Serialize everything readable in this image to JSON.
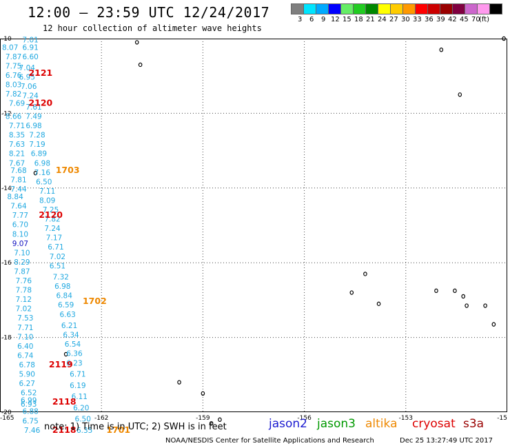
{
  "header": {
    "title": "12:00 – 23:59 UTC 12/24/2017",
    "subtitle": "12 hour collection of altimeter wave heights"
  },
  "legend": {
    "colors": [
      "#7f7f7f",
      "#00e5ff",
      "#00aaff",
      "#0000ff",
      "#66ee66",
      "#22cc22",
      "#008800",
      "#ffff00",
      "#ffcc00",
      "#ff9900",
      "#ff0000",
      "#cc0000",
      "#990000",
      "#800040",
      "#cc66cc",
      "#ff99ee",
      "#000000"
    ],
    "labels": [
      "3",
      "6",
      "9",
      "12",
      "15",
      "18",
      "21",
      "24",
      "27",
      "30",
      "33",
      "36",
      "39",
      "42",
      "45",
      "70",
      "(ft)"
    ]
  },
  "map": {
    "lon_range": [
      -165,
      -150
    ],
    "lat_range": [
      -20,
      -10
    ],
    "lat_ticks": [
      "-10",
      "-12",
      "-14",
      "-16",
      "-18",
      "-20"
    ],
    "lon_ticks": [
      "-165",
      "-162",
      "-159",
      "-156",
      "-153",
      "-15"
    ],
    "swh_color": "#1fa8e0",
    "swh_highlight_color": "#1010c0",
    "swh_values": [
      {
        "lon": -164.1,
        "lat": -10.1,
        "v": "7.01"
      },
      {
        "lon": -164.7,
        "lat": -10.3,
        "v": "8.07"
      },
      {
        "lon": -164.1,
        "lat": -10.3,
        "v": "6.91"
      },
      {
        "lon": -164.6,
        "lat": -10.55,
        "v": "7.87"
      },
      {
        "lon": -164.1,
        "lat": -10.55,
        "v": "6.60"
      },
      {
        "lon": -164.6,
        "lat": -10.8,
        "v": "7.75"
      },
      {
        "lon": -164.2,
        "lat": -10.85,
        "v": "7.04"
      },
      {
        "lon": -164.6,
        "lat": -11.05,
        "v": "6.76"
      },
      {
        "lon": -164.2,
        "lat": -11.1,
        "v": "6.95"
      },
      {
        "lon": -164.6,
        "lat": -11.3,
        "v": "8.03"
      },
      {
        "lon": -164.15,
        "lat": -11.35,
        "v": "7.06"
      },
      {
        "lon": -164.6,
        "lat": -11.55,
        "v": "7.82"
      },
      {
        "lon": -164.1,
        "lat": -11.6,
        "v": "7.24"
      },
      {
        "lon": -164.5,
        "lat": -11.8,
        "v": "7.69"
      },
      {
        "lon": -164.0,
        "lat": -11.9,
        "v": "7.61"
      },
      {
        "lon": -164.6,
        "lat": -12.15,
        "v": "8.66"
      },
      {
        "lon": -164.0,
        "lat": -12.15,
        "v": "7.49"
      },
      {
        "lon": -164.5,
        "lat": -12.4,
        "v": "7.71"
      },
      {
        "lon": -164.0,
        "lat": -12.4,
        "v": "6.98"
      },
      {
        "lon": -164.5,
        "lat": -12.65,
        "v": "8.35"
      },
      {
        "lon": -163.9,
        "lat": -12.65,
        "v": "7.28"
      },
      {
        "lon": -164.5,
        "lat": -12.9,
        "v": "7.63"
      },
      {
        "lon": -163.9,
        "lat": -12.9,
        "v": "7.19"
      },
      {
        "lon": -164.5,
        "lat": -13.15,
        "v": "8.21"
      },
      {
        "lon": -163.85,
        "lat": -13.15,
        "v": "6.89"
      },
      {
        "lon": -164.5,
        "lat": -13.4,
        "v": "7.67"
      },
      {
        "lon": -163.75,
        "lat": -13.4,
        "v": "6.98"
      },
      {
        "lon": -164.45,
        "lat": -13.6,
        "v": "7.68"
      },
      {
        "lon": -163.75,
        "lat": -13.65,
        "v": "7.16"
      },
      {
        "lon": -164.45,
        "lat": -13.85,
        "v": "7.81"
      },
      {
        "lon": -163.7,
        "lat": -13.9,
        "v": "6.50"
      },
      {
        "lon": -164.45,
        "lat": -14.1,
        "v": "7.44"
      },
      {
        "lon": -164.55,
        "lat": -14.3,
        "v": "8.84"
      },
      {
        "lon": -163.6,
        "lat": -14.15,
        "v": "7.11"
      },
      {
        "lon": -164.45,
        "lat": -14.55,
        "v": "7.64"
      },
      {
        "lon": -163.6,
        "lat": -14.4,
        "v": "8.09"
      },
      {
        "lon": -164.4,
        "lat": -14.8,
        "v": "7.77"
      },
      {
        "lon": -163.5,
        "lat": -14.65,
        "v": "7.25"
      },
      {
        "lon": -164.4,
        "lat": -15.05,
        "v": "6.70"
      },
      {
        "lon": -163.45,
        "lat": -14.9,
        "v": "7.82"
      },
      {
        "lon": -164.4,
        "lat": -15.3,
        "v": "8.10"
      },
      {
        "lon": -163.45,
        "lat": -15.15,
        "v": "7.24"
      },
      {
        "lon": -164.4,
        "lat": -15.55,
        "v": "9.07",
        "highlight": true
      },
      {
        "lon": -163.4,
        "lat": -15.4,
        "v": "7.17"
      },
      {
        "lon": -164.35,
        "lat": -15.8,
        "v": "7.10"
      },
      {
        "lon": -163.35,
        "lat": -15.65,
        "v": "6.71"
      },
      {
        "lon": -164.35,
        "lat": -16.05,
        "v": "8.29"
      },
      {
        "lon": -163.3,
        "lat": -15.9,
        "v": "7.02"
      },
      {
        "lon": -164.35,
        "lat": -16.3,
        "v": "7.87"
      },
      {
        "lon": -163.3,
        "lat": -16.15,
        "v": "6.51"
      },
      {
        "lon": -164.3,
        "lat": -16.55,
        "v": "7.76"
      },
      {
        "lon": -163.2,
        "lat": -16.45,
        "v": "7.32"
      },
      {
        "lon": -164.3,
        "lat": -16.8,
        "v": "7.78"
      },
      {
        "lon": -163.15,
        "lat": -16.7,
        "v": "6.98"
      },
      {
        "lon": -164.3,
        "lat": -17.05,
        "v": "7.12"
      },
      {
        "lon": -163.1,
        "lat": -16.95,
        "v": "6.84"
      },
      {
        "lon": -164.3,
        "lat": -17.3,
        "v": "7.02"
      },
      {
        "lon": -163.05,
        "lat": -17.2,
        "v": "6.59"
      },
      {
        "lon": -164.25,
        "lat": -17.55,
        "v": "7.53"
      },
      {
        "lon": -163.0,
        "lat": -17.45,
        "v": "6.63"
      },
      {
        "lon": -164.25,
        "lat": -17.8,
        "v": "7.71"
      },
      {
        "lon": -162.95,
        "lat": -17.75,
        "v": "6.21"
      },
      {
        "lon": -164.25,
        "lat": -18.05,
        "v": "7.10"
      },
      {
        "lon": -162.9,
        "lat": -18.0,
        "v": "6.34"
      },
      {
        "lon": -164.25,
        "lat": -18.3,
        "v": "6.40"
      },
      {
        "lon": -162.85,
        "lat": -18.25,
        "v": "6.54"
      },
      {
        "lon": -164.25,
        "lat": -18.55,
        "v": "6.74"
      },
      {
        "lon": -162.8,
        "lat": -18.5,
        "v": "6.36"
      },
      {
        "lon": -164.2,
        "lat": -18.8,
        "v": "6.78"
      },
      {
        "lon": -162.8,
        "lat": -18.75,
        "v": "6.23"
      },
      {
        "lon": -164.2,
        "lat": -19.05,
        "v": "5.90"
      },
      {
        "lon": -162.7,
        "lat": -19.05,
        "v": "6.71"
      },
      {
        "lon": -164.2,
        "lat": -19.3,
        "v": "6.27"
      },
      {
        "lon": -162.7,
        "lat": -19.35,
        "v": "6.19"
      },
      {
        "lon": -164.15,
        "lat": -19.55,
        "v": "6.52"
      },
      {
        "lon": -164.15,
        "lat": -19.75,
        "v": "6.99"
      },
      {
        "lon": -162.65,
        "lat": -19.65,
        "v": "6.11"
      },
      {
        "lon": -164.15,
        "lat": -19.85,
        "v": "6.93"
      },
      {
        "lon": -164.1,
        "lat": -20.05,
        "v": "6.88"
      },
      {
        "lon": -162.6,
        "lat": -19.95,
        "v": "6.20"
      },
      {
        "lon": -164.1,
        "lat": -20.3,
        "v": "6.75"
      },
      {
        "lon": -162.55,
        "lat": -20.25,
        "v": "6.50"
      },
      {
        "lon": -164.05,
        "lat": -20.55,
        "v": "7.46"
      },
      {
        "lon": -162.5,
        "lat": -20.55,
        "v": "6.35"
      }
    ],
    "time_labels": [
      {
        "lon": -163.8,
        "lat": -11.0,
        "t": "2121",
        "color": "#dd0000"
      },
      {
        "lon": -163.8,
        "lat": -11.8,
        "t": "2120",
        "color": "#dd0000"
      },
      {
        "lon": -163.0,
        "lat": -13.6,
        "t": "1703",
        "color": "#ee8800"
      },
      {
        "lon": -163.5,
        "lat": -14.8,
        "t": "2120",
        "color": "#dd0000"
      },
      {
        "lon": -162.2,
        "lat": -17.1,
        "t": "1702",
        "color": "#ee8800"
      },
      {
        "lon": -163.2,
        "lat": -18.8,
        "t": "2119",
        "color": "#dd0000"
      },
      {
        "lon": -163.1,
        "lat": -19.8,
        "t": "2118",
        "color": "#dd0000"
      },
      {
        "lon": -163.1,
        "lat": -20.55,
        "t": "2118",
        "color": "#dd0000"
      },
      {
        "lon": -161.5,
        "lat": -20.55,
        "t": "1701",
        "color": "#ee8800"
      }
    ],
    "islands": [
      {
        "lon": -160.95,
        "lat": -10.1
      },
      {
        "lon": -160.85,
        "lat": -10.7
      },
      {
        "lon": -154.2,
        "lat": -16.3
      },
      {
        "lon": -154.6,
        "lat": -16.8
      },
      {
        "lon": -153.8,
        "lat": -17.1
      },
      {
        "lon": -152.1,
        "lat": -16.75
      },
      {
        "lon": -151.55,
        "lat": -16.75
      },
      {
        "lon": -151.3,
        "lat": -16.9
      },
      {
        "lon": -151.2,
        "lat": -17.15
      },
      {
        "lon": -150.65,
        "lat": -17.15
      },
      {
        "lon": -150.4,
        "lat": -17.65
      },
      {
        "lon": -151.95,
        "lat": -10.3
      },
      {
        "lon": -151.4,
        "lat": -11.5
      },
      {
        "lon": -150.1,
        "lat": -10.0
      },
      {
        "lon": -163.95,
        "lat": -13.6
      },
      {
        "lon": -163.05,
        "lat": -18.45
      },
      {
        "lon": -159.7,
        "lat": -19.2
      },
      {
        "lon": -159.0,
        "lat": -19.5
      },
      {
        "lon": -158.75,
        "lat": -20.3
      },
      {
        "lon": -158.5,
        "lat": -20.2
      }
    ]
  },
  "notes": {
    "note": "note:  1) Time is in UTC;  2) SWH is in feet",
    "satellites": [
      {
        "name": "jason2",
        "color": "#1a1ad0"
      },
      {
        "name": "jason3",
        "color": "#009900"
      },
      {
        "name": "altika",
        "color": "#ee8800"
      },
      {
        "name": "cryosat",
        "color": "#dd0000"
      },
      {
        "name": "s3a",
        "color": "#990000"
      }
    ],
    "footer_left": "NOAA/NESDIS Center for Satellite Applications and Research",
    "footer_right": "Dec 25 13:27:49 UTC 2017"
  }
}
